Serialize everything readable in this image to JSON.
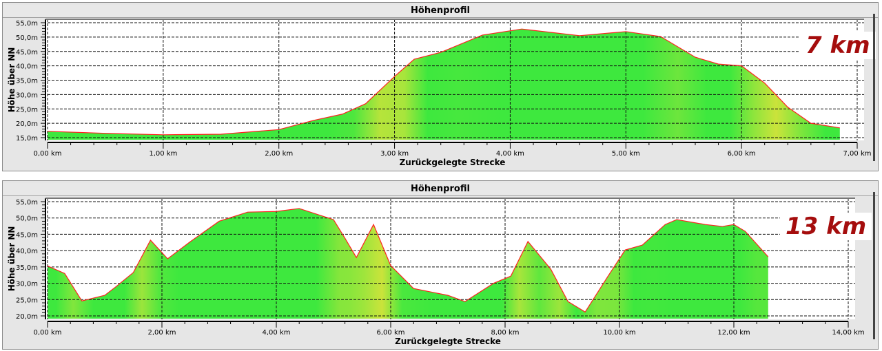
{
  "chart_data": [
    {
      "type": "area",
      "title": "Höhenprofil",
      "xlabel": "Zurückgelegte Strecke",
      "ylabel": "Höhe über NN",
      "annotation": "7 km",
      "xlim": [
        0,
        7
      ],
      "ylim": [
        15,
        55
      ],
      "xticks": [
        "0,00 km",
        "1,00 km",
        "2,00 km",
        "3,00 km",
        "4,00 km",
        "5,00 km",
        "6,00 km",
        "7,00 km"
      ],
      "yticks": [
        "15,0m",
        "20,0m",
        "25,0m",
        "30,0m",
        "35,0m",
        "40,0m",
        "45,0m",
        "50,0m",
        "55,0m"
      ],
      "x": [
        0,
        0.5,
        1.0,
        1.5,
        2.0,
        2.3,
        2.55,
        2.75,
        3.0,
        3.17,
        3.4,
        3.76,
        4.1,
        4.6,
        5.0,
        5.3,
        5.6,
        5.8,
        6.0,
        6.2,
        6.4,
        6.6,
        6.85
      ],
      "y": [
        17.2,
        16.5,
        16.0,
        16.2,
        17.8,
        21.0,
        23.2,
        26.8,
        36.3,
        42.3,
        44.7,
        50.7,
        52.8,
        50.5,
        51.9,
        50.2,
        43.0,
        40.6,
        40.0,
        34.0,
        25.6,
        20.0,
        18.4
      ]
    },
    {
      "type": "area",
      "title": "Höhenprofil",
      "xlabel": "Zurückgelegte Strecke",
      "ylabel": "Höhe über NN",
      "annotation": "13 km",
      "xlim": [
        0,
        14
      ],
      "ylim": [
        20,
        55
      ],
      "xticks": [
        "0,00 km",
        "2,00 km",
        "4,00 km",
        "6,00 km",
        "8,00 km",
        "10,00 km",
        "12,00 km",
        "14,00 km"
      ],
      "yticks": [
        "20,0m",
        "25,0m",
        "30,0m",
        "35,0m",
        "40,0m",
        "45,0m",
        "50,0m",
        "55,0m"
      ],
      "x": [
        0,
        0.3,
        0.6,
        1.0,
        1.2,
        1.5,
        1.8,
        2.1,
        2.5,
        3.0,
        3.5,
        4.0,
        4.4,
        5.0,
        5.2,
        5.4,
        5.7,
        6.0,
        6.4,
        7.0,
        7.3,
        7.8,
        8.1,
        8.4,
        8.8,
        9.1,
        9.4,
        9.8,
        10.1,
        10.4,
        10.8,
        11.0,
        11.5,
        11.8,
        12.0,
        12.2,
        12.6
      ],
      "y": [
        35.3,
        33.0,
        24.6,
        26.3,
        29.0,
        33.3,
        43.2,
        37.5,
        42.8,
        49.0,
        51.8,
        52.0,
        52.9,
        49.5,
        43.8,
        37.9,
        48.0,
        35.4,
        28.4,
        26.3,
        24.4,
        30.0,
        32.2,
        42.8,
        34.3,
        24.4,
        21.2,
        32.2,
        40.2,
        41.7,
        48.0,
        49.5,
        48.0,
        47.4,
        48.0,
        45.9,
        38.1
      ]
    }
  ],
  "colors": {
    "fill_flat": "#3ee83e",
    "fill_steep": "#f5e23a",
    "line": "#ff2020",
    "annotation": "#a50d0d"
  }
}
